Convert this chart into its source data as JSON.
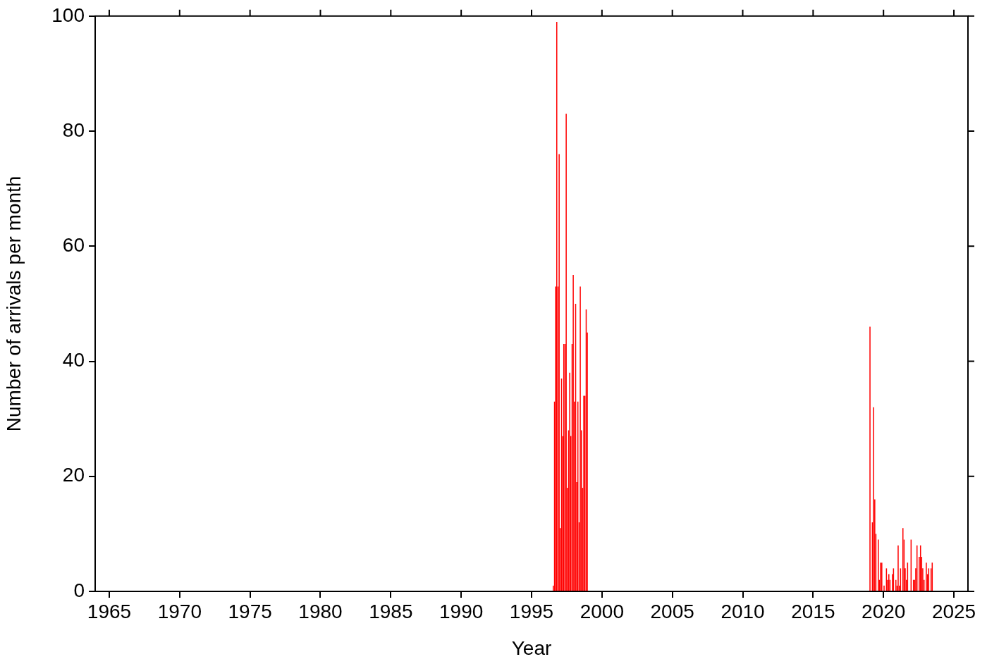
{
  "chart_data": {
    "type": "bar",
    "xlabel": "Year",
    "ylabel": "Number of arrivals per month",
    "x": [
      1996.54,
      1996.63,
      1996.71,
      1996.79,
      1996.88,
      1996.96,
      1997.04,
      1997.13,
      1997.21,
      1997.29,
      1997.38,
      1997.46,
      1997.54,
      1997.63,
      1997.71,
      1997.79,
      1997.88,
      1997.96,
      1998.04,
      1998.13,
      1998.21,
      1998.29,
      1998.38,
      1998.46,
      1998.54,
      1998.63,
      1998.71,
      1998.79,
      1998.88,
      1998.96,
      2019.04,
      2019.21,
      2019.29,
      2019.38,
      2019.46,
      2019.63,
      2019.71,
      2019.79,
      2019.88,
      2020.04,
      2020.21,
      2020.29,
      2020.38,
      2020.46,
      2020.63,
      2020.71,
      2020.88,
      2020.96,
      2021.04,
      2021.13,
      2021.21,
      2021.38,
      2021.46,
      2021.54,
      2021.63,
      2021.71,
      2021.96,
      2022.13,
      2022.21,
      2022.29,
      2022.38,
      2022.54,
      2022.63,
      2022.71,
      2022.79,
      2022.88,
      2023.04,
      2023.13,
      2023.21,
      2023.38,
      2023.46
    ],
    "values": [
      1,
      33,
      53,
      99,
      53,
      76,
      11,
      37,
      27,
      43,
      43,
      83,
      18,
      28,
      38,
      27,
      43,
      55,
      33,
      50,
      19,
      33,
      12,
      53,
      28,
      18,
      34,
      34,
      49,
      45,
      46,
      12,
      32,
      16,
      10,
      9,
      2,
      5,
      5,
      1,
      4,
      2,
      3,
      2,
      3,
      4,
      2,
      1,
      8,
      1,
      4,
      11,
      9,
      4,
      2,
      5,
      9,
      2,
      2,
      4,
      8,
      6,
      8,
      6,
      4,
      2,
      5,
      3,
      4,
      4,
      5
    ],
    "color": "#ff0000",
    "xlim": [
      1964,
      2026
    ],
    "xticks": [
      1965,
      1970,
      1975,
      1980,
      1985,
      1990,
      1995,
      2000,
      2005,
      2010,
      2015,
      2020,
      2025
    ],
    "ylim": [
      0,
      100
    ],
    "yticks": [
      0,
      20,
      40,
      60,
      80,
      100
    ],
    "grid": false,
    "legend": false
  }
}
